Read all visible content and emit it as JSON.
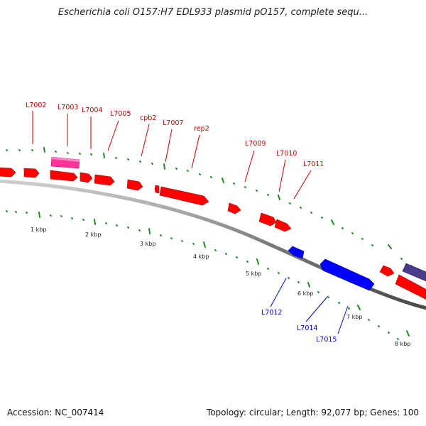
{
  "title": "Escherichia coli O157:H7 EDL933 plasmid pO157, complete sequ...",
  "footer": {
    "accession": "Accession: NC_007414",
    "summary": "Topology: circular; Length: 92,077 bp; Genes: 100"
  },
  "colors": {
    "forward_gene": "#ff0000",
    "reverse_gene": "#0000ff",
    "pink_feature": "#ff3399",
    "purple_feature": "#4b3a8a",
    "backbone": "#808080",
    "tick": "#228b22",
    "forward_label": "#cc0000",
    "reverse_label": "#0000cc"
  },
  "gene_labels_top": [
    "L7002",
    "L7003",
    "L7004",
    "L7005",
    "cpb2",
    "L7007",
    "rep2",
    "L7009",
    "L7010",
    "L7011"
  ],
  "gene_labels_bottom": [
    "L7012",
    "L7014",
    "L7015"
  ],
  "kbp_labels": [
    "1 kbp",
    "2 kbp",
    "3 kbp",
    "4 kbp",
    "5 kbp",
    "6 kbp",
    "7 kbp",
    "8 kbp"
  ]
}
